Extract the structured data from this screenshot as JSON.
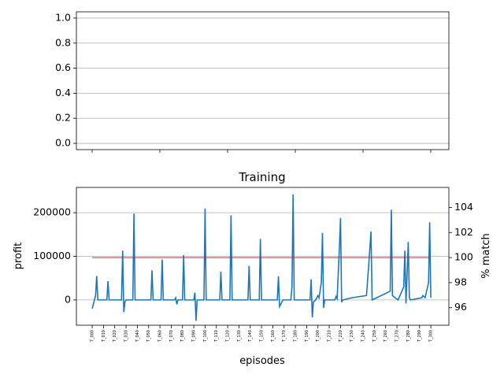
{
  "chart_data": [
    {
      "type": "empty",
      "xlim": [
        -14,
        316
      ],
      "ylim": [
        -0.05,
        1.05
      ],
      "yticks": [
        {
          "value": 0,
          "label": "0.0"
        },
        0.2,
        0.4,
        0.6,
        0.8,
        {
          "value": 1,
          "label": "1.0"
        }
      ],
      "grid": true
    },
    {
      "type": "line",
      "title": "Training",
      "xlabel": "episodes",
      "ylabel": "profit",
      "y2label": "% match",
      "ylabel_color": "#1f77b4",
      "y2label_color": "#d62728",
      "xlim": [
        -14,
        316
      ],
      "ylim": [
        -58000,
        258000
      ],
      "y2lim": [
        94.6,
        105.6
      ],
      "yticks": [
        0,
        100000,
        200000
      ],
      "y2ticks": [
        96,
        98,
        100,
        102,
        104
      ],
      "grid": true,
      "xticks": [
        {
          "value": 0,
          "label": "T_000"
        },
        {
          "value": 10,
          "label": "T_010"
        },
        {
          "value": 20,
          "label": "T_020"
        },
        {
          "value": 30,
          "label": "T_030"
        },
        {
          "value": 40,
          "label": "T_040"
        },
        {
          "value": 50,
          "label": "T_050"
        },
        {
          "value": 60,
          "label": "T_060"
        },
        {
          "value": 70,
          "label": "T_070"
        },
        {
          "value": 80,
          "label": "T_080"
        },
        {
          "value": 90,
          "label": "T_090"
        },
        {
          "value": 100,
          "label": "T_100"
        },
        {
          "value": 110,
          "label": "T_110"
        },
        {
          "value": 120,
          "label": "T_120"
        },
        {
          "value": 130,
          "label": "T_130"
        },
        {
          "value": 140,
          "label": "T_140"
        },
        {
          "value": 150,
          "label": "T_150"
        },
        {
          "value": 160,
          "label": "T_160"
        },
        {
          "value": 170,
          "label": "T_170"
        },
        {
          "value": 180,
          "label": "T_180"
        },
        {
          "value": 190,
          "label": "T_190"
        },
        {
          "value": 200,
          "label": "T_200"
        },
        {
          "value": 210,
          "label": "T_210"
        },
        {
          "value": 220,
          "label": "T_220"
        },
        {
          "value": 230,
          "label": "T_230"
        },
        {
          "value": 240,
          "label": "T_240"
        },
        {
          "value": 250,
          "label": "T_250"
        },
        {
          "value": 260,
          "label": "T_260"
        },
        {
          "value": 270,
          "label": "T_270"
        },
        {
          "value": 280,
          "label": "T_280"
        },
        {
          "value": 290,
          "label": "T_290"
        },
        {
          "value": 300,
          "label": "T_300"
        }
      ],
      "series": [
        {
          "name": "profit",
          "color": "#1f77b4",
          "x": [
            0,
            2,
            3,
            4,
            5,
            13,
            14,
            15,
            26,
            27,
            28,
            29,
            30,
            36,
            37,
            38,
            52,
            53,
            54,
            61,
            62,
            63,
            73,
            74,
            75,
            76,
            80,
            81,
            82,
            90,
            91,
            92,
            93,
            94,
            99,
            100,
            101,
            113,
            114,
            115,
            122,
            123,
            124,
            138,
            139,
            140,
            148,
            149,
            150,
            164,
            165,
            166,
            169,
            176,
            177,
            178,
            179,
            193,
            194,
            195,
            196,
            198,
            200,
            201,
            203,
            204,
            205,
            206,
            215,
            216,
            217,
            219,
            220,
            221,
            222,
            230,
            243,
            245,
            247,
            248,
            264,
            265,
            266,
            267,
            271,
            276,
            277,
            278,
            279,
            280,
            281,
            282,
            292,
            293,
            295,
            298,
            299,
            300
          ],
          "values": [
            -20000,
            0,
            10000,
            55000,
            0,
            0,
            43000,
            0,
            0,
            113000,
            -28000,
            -5000,
            0,
            0,
            198000,
            0,
            0,
            68000,
            0,
            0,
            93000,
            0,
            0,
            5000,
            -10000,
            0,
            0,
            103000,
            0,
            0,
            17000,
            -48000,
            0,
            0,
            0,
            210000,
            0,
            0,
            65000,
            0,
            0,
            194000,
            0,
            0,
            78000,
            0,
            0,
            140000,
            0,
            0,
            54000,
            -15000,
            0,
            0,
            30000,
            242000,
            0,
            0,
            47000,
            -40000,
            -5000,
            0,
            10000,
            5000,
            40000,
            154000,
            -18000,
            0,
            0,
            8000,
            3000,
            120000,
            188000,
            -5000,
            0,
            5000,
            10000,
            80000,
            157000,
            0,
            20000,
            207000,
            10000,
            8000,
            0,
            30000,
            113000,
            -8000,
            60000,
            133000,
            5000,
            0,
            5000,
            10000,
            5000,
            40000,
            178000,
            5000
          ]
        },
        {
          "name": "% match",
          "color": "#d62728",
          "axis": "y2",
          "x": [
            0,
            300
          ],
          "values": [
            100,
            100
          ]
        }
      ]
    }
  ]
}
